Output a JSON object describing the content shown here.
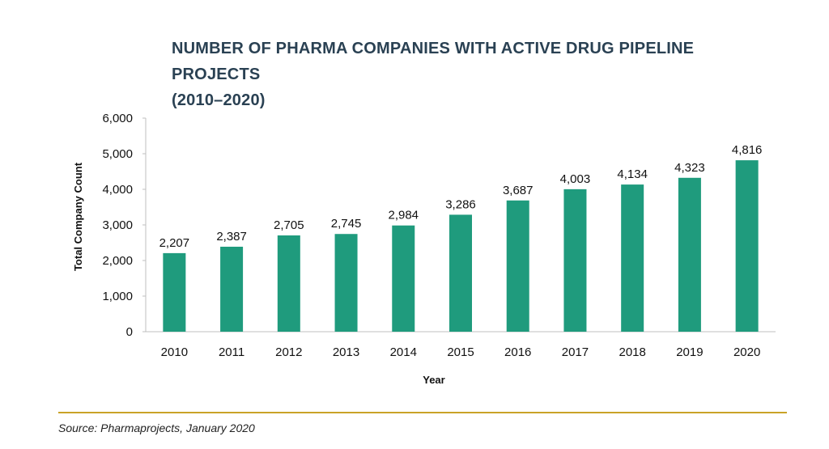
{
  "chart_data": {
    "type": "bar",
    "title": "NUMBER OF PHARMA COMPANIES WITH ACTIVE DRUG PIPELINE PROJECTS (2010–2020)",
    "xlabel": "Year",
    "ylabel": "Total Company Count",
    "categories": [
      "2010",
      "2011",
      "2012",
      "2013",
      "2014",
      "2015",
      "2016",
      "2017",
      "2018",
      "2019",
      "2020"
    ],
    "values": [
      2207,
      2387,
      2705,
      2745,
      2984,
      3286,
      3687,
      4003,
      4134,
      4323,
      4816
    ],
    "data_labels": [
      "2,207",
      "2,387",
      "2,705",
      "2,745",
      "2,984",
      "3,286",
      "3,687",
      "4,003",
      "4,134",
      "4,323",
      "4,816"
    ],
    "ylim": [
      0,
      6000
    ],
    "yticks": [
      0,
      1000,
      2000,
      3000,
      4000,
      5000,
      6000
    ],
    "ytick_labels": [
      "0",
      "1,000",
      "2,000",
      "3,000",
      "4,000",
      "5,000",
      "6,000"
    ],
    "grid": false,
    "legend": "none",
    "bar_color": "#1f9b7d"
  },
  "title_line1": "NUMBER OF PHARMA COMPANIES WITH ACTIVE DRUG PIPELINE PROJECTS",
  "title_line2": "(2010–2020)",
  "source": "Source: Pharmaprojects, January 2020",
  "colors": {
    "title": "#2a4153",
    "bar": "#1f9b7d",
    "divider": "#c9a227",
    "axis": "#bfbfbf"
  }
}
